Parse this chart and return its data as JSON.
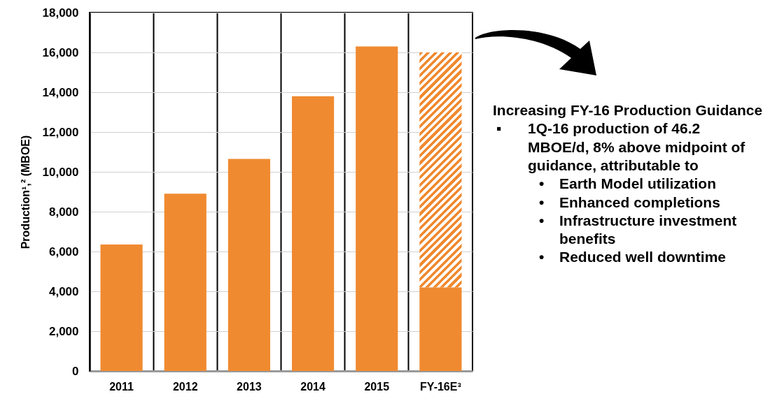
{
  "chart_data": {
    "type": "bar",
    "ylabel": "Production¹,² (MBOE)",
    "categories": [
      "2011",
      "2012",
      "2013",
      "2014",
      "2015",
      "FY-16E³"
    ],
    "stacked": true,
    "series": [
      {
        "color": "#f08a30",
        "values": [
          6350,
          8900,
          10650,
          13800,
          16300,
          4200
        ]
      },
      {
        "color": "#f08a30",
        "values": [
          null,
          null,
          null,
          null,
          null,
          11800
        ]
      }
    ],
    "ylim": [
      0,
      18000
    ],
    "yticks": [
      0,
      {
        "value": 2000,
        "label": "2,000"
      },
      {
        "value": 4000,
        "label": "4,000"
      },
      {
        "value": 6000,
        "label": "6,000"
      },
      {
        "value": 8000,
        "label": "8,000"
      },
      {
        "value": 10000,
        "label": "10,000"
      },
      {
        "value": 12000,
        "label": "12,000"
      },
      {
        "value": 14000,
        "label": "14,000"
      },
      {
        "value": 16000,
        "label": "16,000"
      },
      {
        "value": 18000,
        "label": "18,000"
      }
    ],
    "grid": true,
    "annotations": [
      "Increasing FY-16 Production Guidance",
      "▪ 1Q-16 production of 46.2 MBOE/d, 8% above midpoint of guidance, attributable to",
      "• Earth Model utilization",
      "• Enhanced completions",
      "• Infrastructure investment benefits",
      "• Reduced well downtime"
    ]
  }
}
